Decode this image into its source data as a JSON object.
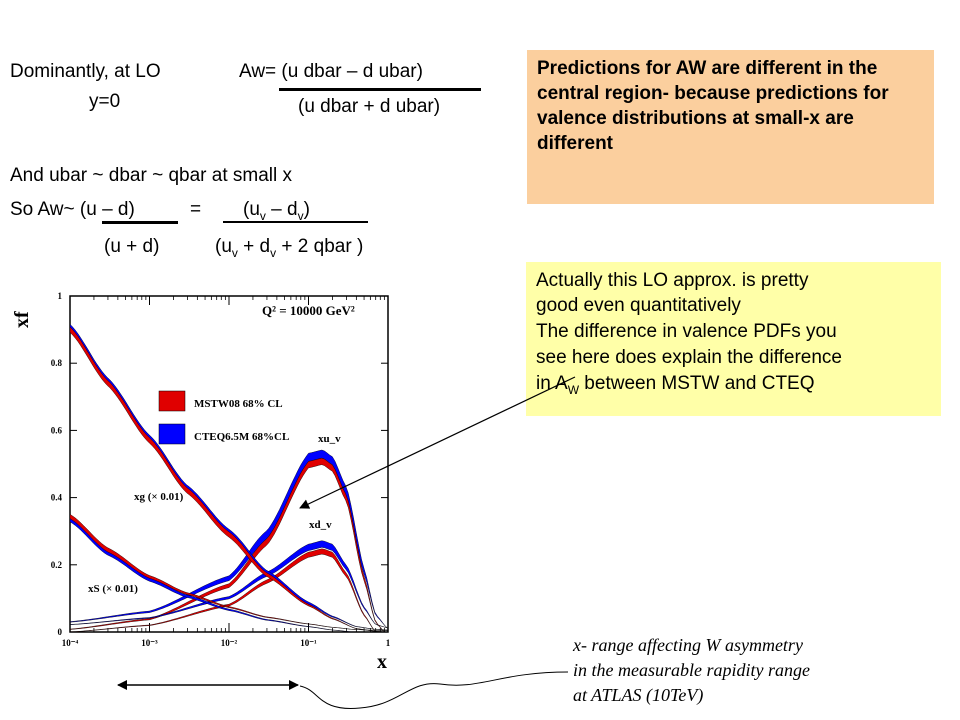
{
  "left_text": {
    "dominantly": "Dominantly, at LO",
    "y0": "y=0",
    "aw_num": "Aw= (u dbar – d ubar)",
    "aw_den": "(u dbar + d ubar)",
    "and_line": "And  ubar ~ dbar ~ qbar  at small x",
    "so_aw": "So Aw~ (u – d)",
    "equals": "=",
    "uv_dv_open": "(u",
    "v": "v",
    "minus_d": " – d",
    "close_paren": ")",
    "u_plus_d": "(u + d)",
    "plus_d": " + d",
    "plus_2qbar": " + 2 qbar )"
  },
  "orange_box": {
    "text": "Predictions for AW are different in the central region- because predictions for valence distributions at small-x are different",
    "color": "#fbcf9e"
  },
  "yellow_box": {
    "line1": "Actually this LO approx. is pretty",
    "line2": "good even quantitatively",
    "line3": "The difference in valence PDFs you",
    "line4": "see here does explain the difference",
    "line5_pre": "in A",
    "line5_sub": "W",
    "line5_post": " between MSTW and CTEQ",
    "color": "#ffffa8"
  },
  "note": {
    "line1": "x- range affecting W asymmetry",
    "line2": "in the measurable rapidity range",
    "line3": "at ATLAS (10TeV)"
  },
  "chart_data": {
    "type": "line",
    "title": "Q² = 10000 GeV²",
    "ylabel": "xf",
    "xlabel": "x",
    "x_scale": "log",
    "xlim": [
      0.0001,
      1
    ],
    "ylim": [
      0,
      1
    ],
    "x_ticks": [
      "10⁻⁴",
      "10⁻³",
      "10⁻²",
      "10⁻¹",
      "1"
    ],
    "y_ticks": [
      "0",
      "0.2",
      "0.4",
      "0.6",
      "0.8",
      "1"
    ],
    "legend": [
      {
        "name": "MSTW08 68% CL",
        "color": "#e00000"
      },
      {
        "name": "CTEQ6.5M 68%CL",
        "color": "#0000ff"
      }
    ],
    "annotations": [
      "xu_v",
      "xd_v",
      "xg (× 0.01)",
      "xS (× 0.01)"
    ],
    "series": [
      {
        "label": "xu_v",
        "x": [
          0.0001,
          0.001,
          0.01,
          0.03,
          0.1,
          0.15,
          0.2,
          0.3,
          0.5,
          0.7,
          1
        ],
        "y": [
          0.02,
          0.05,
          0.15,
          0.28,
          0.51,
          0.52,
          0.5,
          0.41,
          0.17,
          0.04,
          0
        ]
      },
      {
        "label": "xd_v",
        "x": [
          0.0001,
          0.001,
          0.01,
          0.03,
          0.1,
          0.15,
          0.2,
          0.3,
          0.5,
          0.7,
          1
        ],
        "y": [
          0.01,
          0.03,
          0.09,
          0.16,
          0.24,
          0.25,
          0.24,
          0.18,
          0.06,
          0.01,
          0
        ]
      },
      {
        "label": "xg (× 0.01)",
        "x": [
          0.0001,
          0.0003,
          0.001,
          0.003,
          0.01,
          0.03,
          0.1,
          0.2,
          0.4,
          0.7,
          1
        ],
        "y": [
          0.9,
          0.74,
          0.57,
          0.42,
          0.29,
          0.17,
          0.08,
          0.04,
          0.01,
          0.002,
          0
        ]
      },
      {
        "label": "xS (× 0.01)",
        "x": [
          0.0001,
          0.0003,
          0.001,
          0.003,
          0.01,
          0.03,
          0.1,
          0.2,
          0.4,
          0.7,
          1
        ],
        "y": [
          0.34,
          0.24,
          0.16,
          0.11,
          0.07,
          0.04,
          0.02,
          0.01,
          0.003,
          0.001,
          0
        ]
      }
    ]
  }
}
